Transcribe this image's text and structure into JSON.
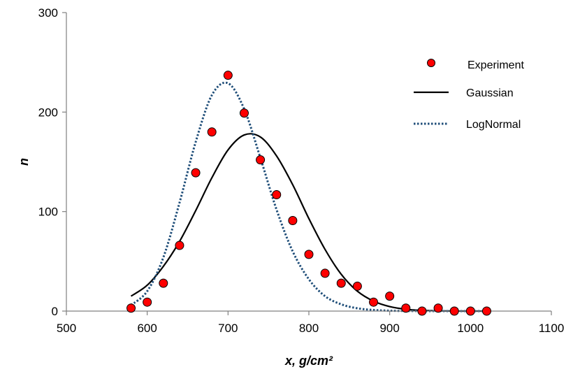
{
  "chart_data": {
    "type": "scatter",
    "title": "",
    "xlabel": "x, g/cm²",
    "ylabel": "n",
    "xlim": [
      500,
      1100
    ],
    "ylim": [
      0,
      300
    ],
    "x_ticks": [
      500,
      600,
      700,
      800,
      900,
      1000,
      1100
    ],
    "y_ticks": [
      0,
      100,
      200,
      300
    ],
    "x_tick_labels": [
      "500",
      "600",
      "700",
      "800",
      "900",
      "1000",
      "1100"
    ],
    "y_tick_labels": [
      "0",
      "100",
      "200",
      "300"
    ],
    "grid": false,
    "legend_position": "top-right",
    "legend": [
      "Experiment",
      "Gaussian",
      "LogNormal"
    ],
    "series": [
      {
        "name": "Experiment",
        "kind": "points",
        "color": "#ff0000",
        "edge_color": "#000000",
        "x": [
          580,
          600,
          620,
          640,
          660,
          680,
          700,
          720,
          740,
          760,
          780,
          800,
          820,
          840,
          860,
          880,
          900,
          920,
          940,
          960,
          980,
          1000,
          1020
        ],
        "y": [
          3,
          9,
          28,
          66,
          139,
          180,
          237,
          199,
          152,
          117,
          91,
          57,
          38,
          28,
          25,
          9,
          15,
          3,
          0,
          3,
          0,
          0,
          0
        ]
      },
      {
        "name": "Gaussian",
        "kind": "line",
        "style": "solid",
        "color": "#000000",
        "x": [
          580,
          600,
          620,
          640,
          660,
          680,
          700,
          720,
          740,
          760,
          780,
          800,
          820,
          840,
          860,
          880,
          900,
          920,
          940,
          960,
          980,
          1000,
          1020
        ],
        "y": [
          15,
          26,
          45,
          70,
          101,
          134,
          162,
          177,
          175,
          156,
          127,
          93,
          62,
          37,
          20,
          10,
          4.5,
          1.8,
          0.7,
          0.2,
          0.05,
          0.01,
          0
        ]
      },
      {
        "name": "LogNormal",
        "kind": "line",
        "style": "dotted",
        "color": "#1f4e79",
        "x": [
          580,
          600,
          620,
          640,
          660,
          680,
          700,
          720,
          740,
          760,
          780,
          800,
          820,
          840,
          860,
          880,
          900,
          920,
          940,
          960,
          980,
          1000,
          1020
        ],
        "y": [
          6,
          20,
          54,
          109,
          170,
          217,
          229,
          203,
          154,
          102,
          60,
          32,
          15,
          6.8,
          2.8,
          1.1,
          0.4,
          0.1,
          0.04,
          0.01,
          0,
          0,
          0
        ]
      }
    ]
  }
}
